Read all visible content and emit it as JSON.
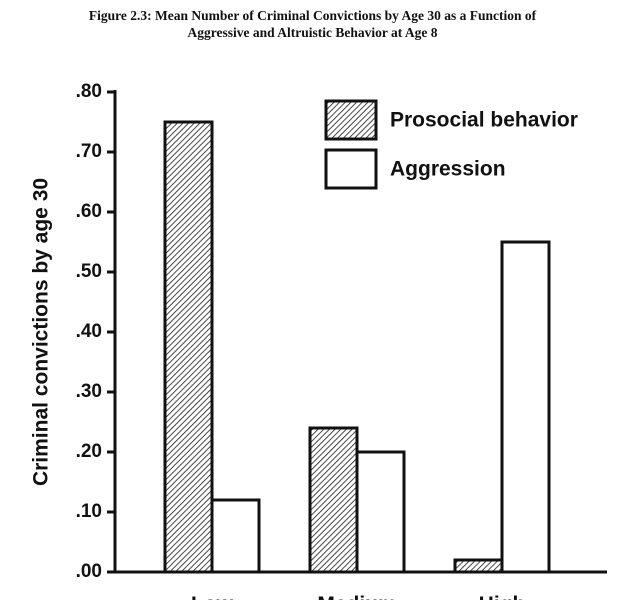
{
  "title": {
    "line1": "Figure 2.3: Mean Number of Criminal Convictions by Age 30 as a Function of",
    "line2": "Aggressive and Altruistic Behavior at Age 8"
  },
  "chart_data": {
    "type": "bar",
    "categories": [
      "Low",
      "Medium",
      "High"
    ],
    "series": [
      {
        "name": "Prosocial behavior",
        "values": [
          0.75,
          0.24,
          0.02
        ],
        "fill": "hatched"
      },
      {
        "name": "Aggression",
        "values": [
          0.12,
          0.2,
          0.55
        ],
        "fill": "white"
      }
    ],
    "ylabel": "Criminal convictions by age 30",
    "xlabel": "",
    "ylim": [
      0,
      0.8
    ],
    "yticks": [
      0,
      0.1,
      0.2,
      0.3,
      0.4,
      0.5,
      0.6,
      0.7,
      0.8
    ],
    "ytick_labels": [
      ".00",
      ".10",
      ".20",
      ".30",
      ".40",
      ".50",
      ".60",
      ".70",
      ".80"
    ],
    "legend_position": "top-right",
    "grid": false
  }
}
